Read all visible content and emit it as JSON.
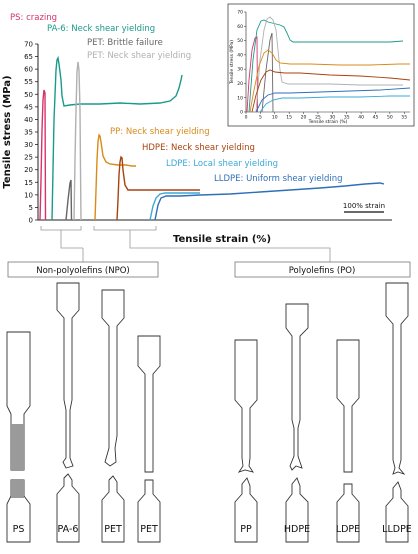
{
  "main_chart": {
    "y_axis_label": "Tensile stress (MPa)",
    "x_axis_label": "Tensile strain (%)",
    "scale_bar_label": "100% strain",
    "y_ticks": [
      "0",
      "5",
      "10",
      "15",
      "20",
      "25",
      "30",
      "35",
      "40",
      "45",
      "50",
      "55",
      "60",
      "65",
      "70"
    ]
  },
  "curve_labels": {
    "ps": "PS: crazing",
    "pa6": "PA-6: Neck shear yielding",
    "pet_brittle": "PET: Brittle failure",
    "pet_neck": "PET: Neck shear yielding",
    "pp": "PP: Neck shear yielding",
    "hdpe": "HDPE: Neck shear yielding",
    "ldpe": "LDPE: Local shear yielding",
    "lldpe": "LLDPE: Uniform shear yielding"
  },
  "inset_chart": {
    "y_axis_label": "Tensile stress (MPa)",
    "x_axis_label": "Tensile strain (%)",
    "y_ticks": [
      "0",
      "10",
      "20",
      "30",
      "40",
      "50",
      "60",
      "70"
    ],
    "x_ticks": [
      "0",
      "5",
      "10",
      "15",
      "20",
      "25",
      "30",
      "35",
      "40",
      "45",
      "50",
      "55"
    ]
  },
  "groups": {
    "npo_label": "Non-polyolefins (NPO)",
    "po_label": "Polyolefins (PO)"
  },
  "specimens": [
    "PS",
    "PA-6",
    "PET",
    "PET",
    "PP",
    "HDPE",
    "LDPE",
    "LLDPE"
  ],
  "colors": {
    "ps": "#d6336c",
    "pa6": "#1a9a8a",
    "pet_brittle": "#666666",
    "pet_neck": "#b0b0b0",
    "pp": "#d98a1a",
    "hdpe": "#a8420e",
    "ldpe": "#3aa9d8",
    "lldpe": "#2f6fb8",
    "specimen_fill": "#ffffff",
    "specimen_stroke": "#333333",
    "craze_fill": "#9a9a9a"
  }
}
